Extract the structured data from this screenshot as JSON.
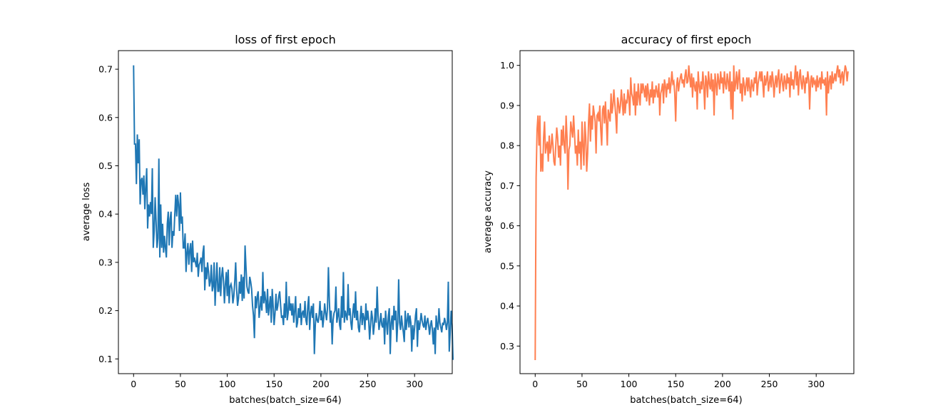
{
  "chart_data": [
    {
      "type": "line",
      "title": "loss of first epoch",
      "xlabel": "batches(batch_size=64)",
      "ylabel": "average loss",
      "xlim": [
        -16.2,
        340.2
      ],
      "ylim": [
        0.0695,
        0.7385
      ],
      "xticks": [
        0,
        50,
        100,
        150,
        200,
        250,
        300
      ],
      "yticks": [
        0.1,
        0.2,
        0.3,
        0.4,
        0.5,
        0.6,
        0.7
      ],
      "xtick_labels": [
        "0",
        "50",
        "100",
        "150",
        "200",
        "250",
        "300"
      ],
      "ytick_labels": [
        "0.1",
        "0.2",
        "0.3",
        "0.4",
        "0.5",
        "0.6",
        "0.7"
      ],
      "grid": false,
      "series": [
        {
          "color": "#1f77b4",
          "x_start": 0,
          "x_step": 1,
          "values": [
            0.708,
            0.545,
            0.545,
            0.462,
            0.565,
            0.505,
            0.555,
            0.42,
            0.47,
            0.475,
            0.44,
            0.48,
            0.41,
            0.455,
            0.495,
            0.37,
            0.42,
            0.395,
            0.425,
            0.4,
            0.495,
            0.33,
            0.365,
            0.435,
            0.385,
            0.33,
            0.35,
            0.515,
            0.31,
            0.42,
            0.33,
            0.38,
            0.32,
            0.355,
            0.33,
            0.31,
            0.38,
            0.405,
            0.335,
            0.39,
            0.405,
            0.33,
            0.365,
            0.355,
            0.4,
            0.44,
            0.395,
            0.44,
            0.42,
            0.365,
            0.445,
            0.38,
            0.395,
            0.33,
            0.33,
            0.36,
            0.28,
            0.32,
            0.34,
            0.295,
            0.325,
            0.34,
            0.28,
            0.345,
            0.3,
            0.31,
            0.3,
            0.29,
            0.32,
            0.27,
            0.295,
            0.3,
            0.31,
            0.28,
            0.32,
            0.335,
            0.242,
            0.29,
            0.265,
            0.3,
            0.28,
            0.25,
            0.26,
            0.295,
            0.24,
            0.25,
            0.3,
            0.21,
            0.26,
            0.3,
            0.24,
            0.24,
            0.29,
            0.23,
            0.27,
            0.29,
            0.26,
            0.215,
            0.255,
            0.28,
            0.23,
            0.285,
            0.215,
            0.25,
            0.255,
            0.245,
            0.215,
            0.23,
            0.26,
            0.3,
            0.245,
            0.21,
            0.225,
            0.26,
            0.235,
            0.275,
            0.22,
            0.27,
            0.225,
            0.335,
            0.29,
            0.25,
            0.24,
            0.235,
            0.27,
            0.26,
            0.245,
            0.21,
            0.19,
            0.143,
            0.23,
            0.205,
            0.23,
            0.24,
            0.185,
            0.205,
            0.23,
            0.2,
            0.28,
            0.215,
            0.24,
            0.22,
            0.195,
            0.245,
            0.19,
            0.21,
            0.23,
            0.175,
            0.245,
            0.21,
            0.17,
            0.195,
            0.235,
            0.2,
            0.21,
            0.23,
            0.24,
            0.21,
            0.185,
            0.19,
            0.17,
            0.215,
            0.185,
            0.26,
            0.18,
            0.195,
            0.23,
            0.2,
            0.215,
            0.19,
            0.215,
            0.175,
            0.2,
            0.23,
            0.165,
            0.175,
            0.205,
            0.185,
            0.215,
            0.17,
            0.195,
            0.2,
            0.185,
            0.22,
            0.18,
            0.17,
            0.21,
            0.23,
            0.16,
            0.195,
            0.21,
            0.185,
            0.215,
            0.11,
            0.17,
            0.195,
            0.18,
            0.175,
            0.19,
            0.22,
            0.18,
            0.2,
            0.165,
            0.185,
            0.215,
            0.195,
            0.18,
            0.205,
            0.29,
            0.22,
            0.175,
            0.2,
            0.13,
            0.18,
            0.195,
            0.2,
            0.25,
            0.175,
            0.19,
            0.205,
            0.17,
            0.16,
            0.23,
            0.185,
            0.28,
            0.175,
            0.2,
            0.19,
            0.18,
            0.255,
            0.19,
            0.205,
            0.175,
            0.16,
            0.195,
            0.215,
            0.185,
            0.24,
            0.18,
            0.2,
            0.165,
            0.155,
            0.185,
            0.21,
            0.17,
            0.195,
            0.185,
            0.16,
            0.215,
            0.18,
            0.2,
            0.18,
            0.14,
            0.17,
            0.2,
            0.185,
            0.15,
            0.17,
            0.205,
            0.175,
            0.25,
            0.19,
            0.16,
            0.175,
            0.195,
            0.17,
            0.165,
            0.185,
            0.13,
            0.2,
            0.175,
            0.15,
            0.19,
            0.205,
            0.11,
            0.175,
            0.19,
            0.16,
            0.21,
            0.18,
            0.2,
            0.135,
            0.175,
            0.265,
            0.175,
            0.16,
            0.19,
            0.17,
            0.155,
            0.135,
            0.2,
            0.16,
            0.18,
            0.195,
            0.165,
            0.19,
            0.175,
            0.115,
            0.17,
            0.14,
            0.165,
            0.19,
            0.205,
            0.125,
            0.18,
            0.16,
            0.175,
            0.195,
            0.18,
            0.17,
            0.165,
            0.19,
            0.16,
            0.175,
            0.185,
            0.17,
            0.15,
            0.17,
            0.18,
            0.16,
            0.13,
            0.165,
            0.11,
            0.19,
            0.17,
            0.16,
            0.205,
            0.175,
            0.165,
            0.155,
            0.175,
            0.17,
            0.185,
            0.175,
            0.16,
            0.175,
            0.26,
            0.115,
            0.155,
            0.2,
            0.17,
            0.098
          ]
        }
      ]
    },
    {
      "type": "line",
      "title": "accuracy of first epoch",
      "xlabel": "batches(batch_size=64)",
      "ylabel": "average accuracy",
      "xlim": [
        -16.2,
        340.2
      ],
      "ylim": [
        0.2312,
        1.0368
      ],
      "xticks": [
        0,
        50,
        100,
        150,
        200,
        250,
        300
      ],
      "yticks": [
        0.3,
        0.4,
        0.5,
        0.6,
        0.7,
        0.8,
        0.9,
        1.0
      ],
      "xtick_labels": [
        "0",
        "50",
        "100",
        "150",
        "200",
        "250",
        "300"
      ],
      "ytick_labels": [
        "0.3",
        "0.4",
        "0.5",
        "0.6",
        "0.7",
        "0.8",
        "0.9",
        "1.0"
      ],
      "grid": false,
      "series": [
        {
          "color": "#ff7f50",
          "x_start": 0,
          "x_step": 1,
          "values": [
            0.265,
            0.72,
            0.84,
            0.875,
            0.8,
            0.875,
            0.735,
            0.78,
            0.735,
            0.82,
            0.86,
            0.78,
            0.8,
            0.81,
            0.76,
            0.825,
            0.78,
            0.795,
            0.83,
            0.8,
            0.76,
            0.75,
            0.8,
            0.845,
            0.82,
            0.77,
            0.8,
            0.75,
            0.84,
            0.8,
            0.85,
            0.8,
            0.78,
            0.875,
            0.82,
            0.69,
            0.79,
            0.8,
            0.86,
            0.84,
            0.82,
            0.875,
            0.83,
            0.78,
            0.8,
            0.75,
            0.84,
            0.78,
            0.81,
            0.74,
            0.86,
            0.8,
            0.75,
            0.86,
            0.82,
            0.735,
            0.78,
            0.86,
            0.905,
            0.81,
            0.875,
            0.84,
            0.9,
            0.88,
            0.86,
            0.78,
            0.875,
            0.88,
            0.86,
            0.9,
            0.84,
            0.8,
            0.89,
            0.9,
            0.855,
            0.91,
            0.86,
            0.8,
            0.89,
            0.875,
            0.86,
            0.93,
            0.88,
            0.9,
            0.94,
            0.905,
            0.875,
            0.83,
            0.92,
            0.905,
            0.88,
            0.9,
            0.94,
            0.91,
            0.875,
            0.93,
            0.88,
            0.91,
            0.905,
            0.94,
            0.92,
            0.875,
            0.97,
            0.93,
            0.92,
            0.9,
            0.955,
            0.875,
            0.935,
            0.9,
            0.955,
            0.92,
            0.9,
            0.955,
            0.93,
            0.955,
            0.94,
            0.92,
            0.95,
            0.91,
            0.955,
            0.93,
            0.9,
            0.94,
            0.92,
            0.96,
            0.905,
            0.94,
            0.92,
            0.95,
            0.935,
            0.92,
            0.955,
            0.875,
            0.93,
            0.94,
            0.955,
            0.905,
            0.965,
            0.95,
            0.92,
            0.955,
            0.94,
            0.97,
            0.93,
            0.955,
            0.985,
            0.955,
            0.96,
            0.93,
            0.86,
            0.95,
            0.97,
            0.935,
            0.955,
            0.97,
            0.98,
            0.955,
            0.965,
            0.945,
            0.975,
            0.99,
            0.955,
            0.96,
            1.0,
            0.97,
            0.945,
            0.98,
            0.92,
            0.97,
            0.95,
            0.935,
            0.96,
            0.89,
            0.985,
            0.95,
            0.93,
            0.96,
            0.94,
            0.985,
            0.95,
            0.89,
            0.975,
            0.96,
            0.92,
            0.985,
            0.955,
            0.94,
            0.98,
            0.935,
            0.965,
            0.875,
            0.98,
            0.955,
            0.925,
            0.98,
            0.96,
            0.94,
            0.985,
            0.955,
            0.97,
            0.93,
            0.985,
            0.955,
            0.94,
            0.98,
            0.96,
            0.935,
            0.985,
            0.89,
            0.96,
            0.865,
            1.0,
            0.935,
            0.955,
            0.985,
            0.94,
            0.97,
            0.99,
            0.93,
            0.955,
            0.91,
            0.97,
            0.955,
            0.925,
            0.95,
            0.97,
            0.935,
            0.97,
            0.945,
            0.92,
            0.965,
            0.95,
            0.935,
            0.97,
            0.955,
            0.985,
            0.925,
            0.955,
            0.97,
            0.985,
            0.96,
            0.985,
            0.955,
            0.92,
            0.975,
            0.95,
            0.965,
            0.985,
            0.935,
            0.955,
            0.975,
            0.945,
            0.985,
            0.965,
            0.92,
            0.955,
            0.975,
            0.945,
            0.97,
            0.99,
            0.93,
            0.96,
            0.98,
            0.955,
            0.935,
            0.975,
            0.96,
            0.94,
            0.98,
            0.955,
            0.97,
            0.92,
            0.985,
            0.95,
            0.965,
            0.94,
            0.97,
            1.0,
            0.95,
            0.985,
            0.925,
            0.97,
            0.99,
            0.955,
            0.94,
            0.975,
            0.96,
            0.93,
            0.97,
            0.955,
            0.985,
            0.965,
            0.89,
            0.96,
            0.975,
            0.945,
            0.97,
            0.955,
            0.96,
            0.935,
            0.975,
            0.945,
            0.96,
            0.97,
            0.94,
            0.985,
            0.955,
            0.965,
            0.95,
            0.97,
            0.875,
            0.985,
            0.93,
            0.96,
            0.975,
            0.94,
            0.985,
            0.955,
            0.965,
            0.98,
            0.96,
            0.985,
            1.0,
            0.97,
            0.99,
            0.955,
            0.975,
            0.985,
            0.95,
            0.98,
            1.0,
            0.99,
            0.96,
            0.985
          ]
        }
      ]
    }
  ]
}
